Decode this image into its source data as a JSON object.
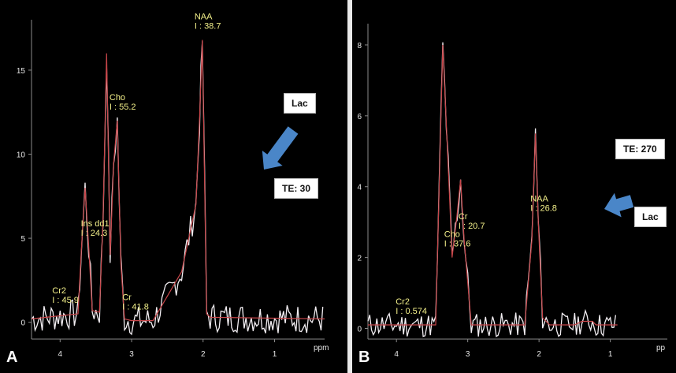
{
  "colors": {
    "trace": "#f2eef2",
    "fit": "#c8464a",
    "label": "#f3f08a",
    "arrow": "#4a86c8"
  },
  "chart_data": [
    {
      "type": "line",
      "panel": "A",
      "x_unit": "ppm",
      "x_reversed": true,
      "xlim": [
        0.3,
        4.4
      ],
      "ylim": [
        -1,
        18
      ],
      "x_ticks": [
        "4",
        "3",
        "2",
        "1"
      ],
      "y_ticks": [
        "0",
        "5",
        "10",
        "15"
      ],
      "series": [
        {
          "role": "fit",
          "x": [
            4.4,
            3.75,
            3.7,
            3.65,
            3.6,
            3.55,
            3.45,
            3.4,
            3.35,
            3.3,
            3.25,
            3.2,
            3.15,
            3.1,
            3.0,
            2.7,
            2.3,
            2.1,
            2.05,
            2.01,
            1.95,
            1.9,
            0.3
          ],
          "y": [
            0.2,
            0.5,
            4.5,
            8.0,
            4.5,
            0.7,
            0.6,
            6.0,
            16.0,
            4.0,
            9.5,
            12.0,
            3.5,
            0.2,
            0.1,
            0.1,
            3.0,
            7.0,
            12.0,
            16.8,
            0.5,
            0.3,
            0.2
          ]
        }
      ],
      "peak_labels": [
        {
          "name": "Cr2",
          "integral": "I : 45.9",
          "ppm": 4.0
        },
        {
          "name": "Ins dd1",
          "integral": "I : 24.3",
          "ppm": 3.6
        },
        {
          "name": "Cho",
          "integral": "I : 55.2",
          "ppm": 3.2
        },
        {
          "name": "Cr",
          "integral": "I : 41.8",
          "ppm": 3.02
        },
        {
          "name": "NAA",
          "integral": "I : 38.7",
          "ppm": 2.01
        }
      ],
      "callouts": {
        "metabolite": "Lac",
        "echo_time": "TE: 30"
      },
      "panel_letter": "A"
    },
    {
      "type": "line",
      "panel": "B",
      "x_unit": "pp",
      "x_reversed": true,
      "xlim": [
        0.2,
        4.4
      ],
      "ylim": [
        -0.3,
        8.6
      ],
      "x_ticks": [
        "4",
        "3",
        "2",
        "1"
      ],
      "y_ticks": [
        "0",
        "2",
        "4",
        "6",
        "8"
      ],
      "series": [
        {
          "role": "fit",
          "x": [
            4.4,
            3.45,
            3.35,
            3.25,
            3.22,
            3.15,
            3.1,
            3.05,
            2.95,
            2.2,
            2.1,
            2.05,
            2.01,
            1.95,
            1.85,
            1.5,
            1.4,
            1.35,
            1.3,
            1.25,
            1.2,
            0.9
          ],
          "y": [
            0.1,
            0.1,
            8.0,
            3.5,
            2.0,
            3.2,
            4.2,
            2.5,
            0.1,
            0.1,
            2.5,
            5.5,
            3.0,
            0.3,
            0.1,
            0.1,
            0.2,
            0.2,
            0.2,
            0.2,
            0.1,
            0.1
          ]
        }
      ],
      "peak_labels": [
        {
          "name": "Cho",
          "integral": "I : 37.6",
          "ppm": 3.22
        },
        {
          "name": "Cr",
          "integral": "I : 20.7",
          "ppm": 3.02
        },
        {
          "name": "NAA",
          "integral": "I : 26.8",
          "ppm": 2.01
        },
        {
          "name": "Cr2",
          "integral": "I : 0.574",
          "ppm": 3.9
        }
      ],
      "callouts": {
        "metabolite": "Lac",
        "echo_time": "TE: 270"
      },
      "panel_letter": "B"
    }
  ]
}
